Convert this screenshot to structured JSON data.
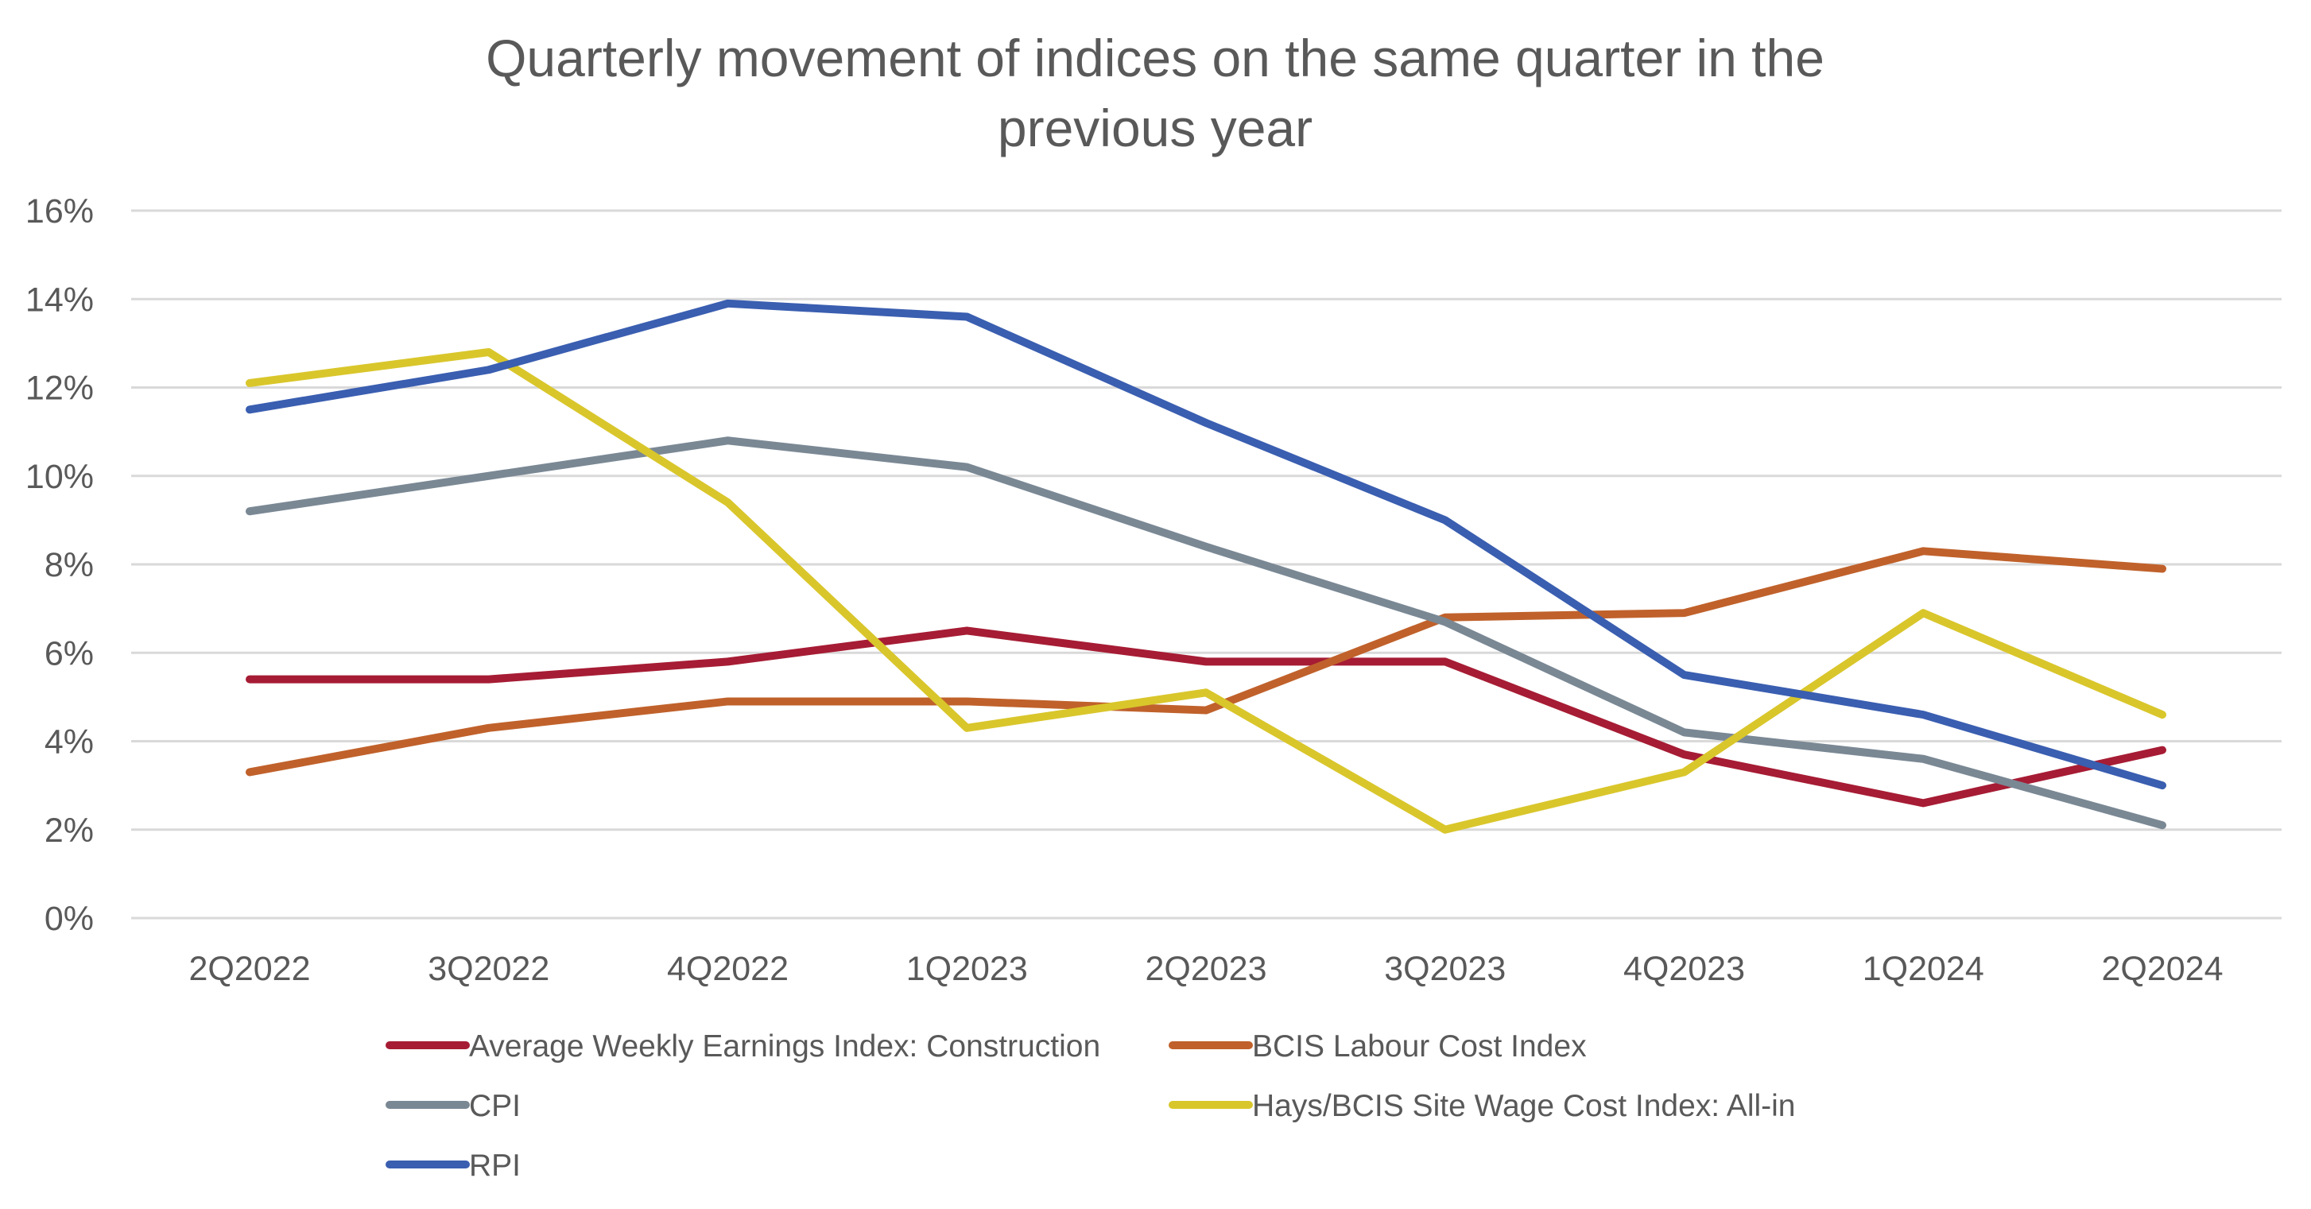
{
  "chart_data": {
    "type": "line",
    "title_lines": [
      "Quarterly movement of indices on the same quarter in the",
      "previous year"
    ],
    "categories": [
      "2Q2022",
      "3Q2022",
      "4Q2022",
      "1Q2023",
      "2Q2023",
      "3Q2023",
      "4Q2023",
      "1Q2024",
      "2Q2024"
    ],
    "y_ticks": [
      "0%",
      "2%",
      "4%",
      "6%",
      "8%",
      "10%",
      "12%",
      "14%",
      "16%"
    ],
    "ylim": [
      0,
      16
    ],
    "grid": true,
    "legend_position": "bottom",
    "series": [
      {
        "name": "Average Weekly Earnings Index: Construction",
        "color": "#a61c34",
        "values": [
          5.4,
          5.4,
          5.8,
          6.5,
          5.8,
          5.8,
          3.7,
          2.6,
          3.8
        ]
      },
      {
        "name": "BCIS Labour Cost Index",
        "color": "#c0612b",
        "values": [
          3.3,
          4.3,
          4.9,
          4.9,
          4.7,
          6.8,
          6.9,
          8.3,
          7.9
        ]
      },
      {
        "name": "CPI",
        "color": "#7a8894",
        "values": [
          9.2,
          10.0,
          10.8,
          10.2,
          8.4,
          6.7,
          4.2,
          3.6,
          2.1
        ]
      },
      {
        "name": "Hays/BCIS Site Wage Cost Index: All-in",
        "color": "#d9c62b",
        "values": [
          12.1,
          12.8,
          9.4,
          4.3,
          5.1,
          2.0,
          3.3,
          6.9,
          4.6
        ]
      },
      {
        "name": "RPI",
        "color": "#3a5eb0",
        "values": [
          11.5,
          12.4,
          13.9,
          13.6,
          11.2,
          9.0,
          5.5,
          4.6,
          3.0
        ]
      }
    ]
  }
}
